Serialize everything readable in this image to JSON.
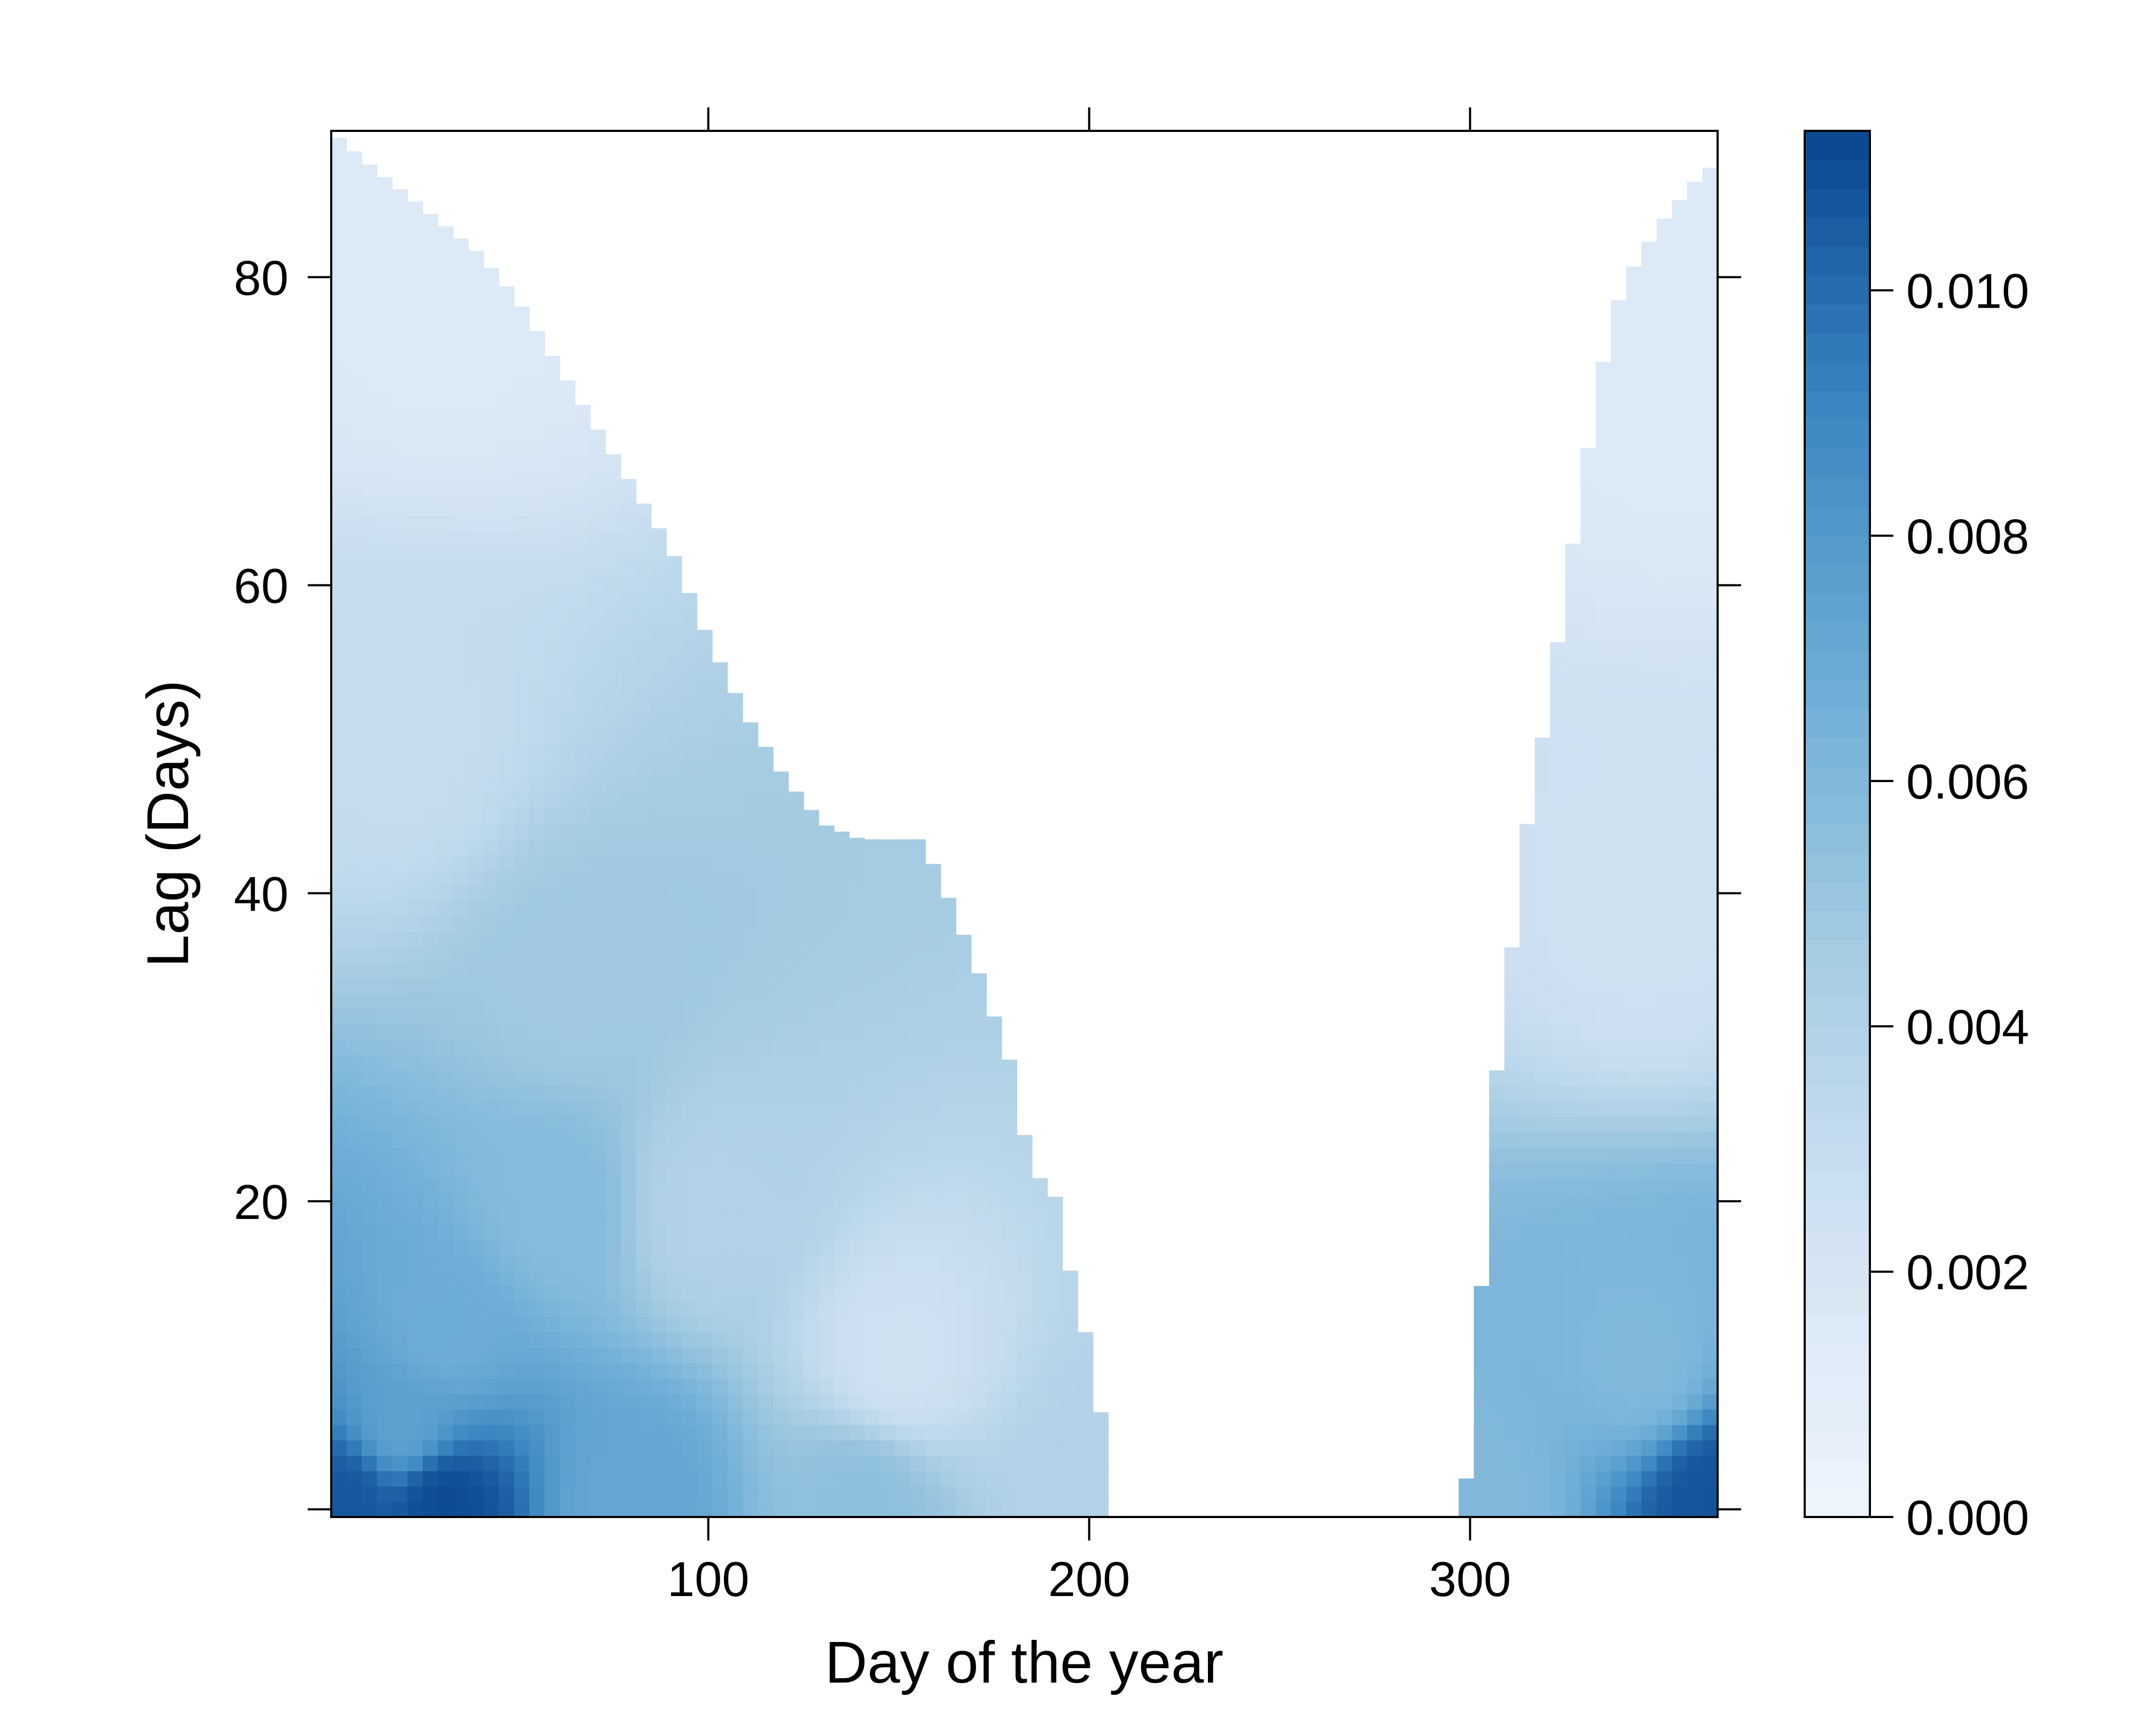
{
  "chart_data": {
    "type": "heatmap",
    "title": "",
    "xlabel": "Day of the year",
    "ylabel": "Lag (Days)",
    "xlim": [
      1,
      365
    ],
    "ylim": [
      0,
      90
    ],
    "x_ticks": [
      100,
      200,
      300
    ],
    "x_tick_labels": [
      "100",
      "200",
      "300"
    ],
    "y_ticks": [
      0,
      20,
      40,
      60,
      80
    ],
    "y_tick_labels": [
      "",
      "20",
      "40",
      "60",
      "80"
    ],
    "colorbar": {
      "min": 0.0,
      "max": 0.0113,
      "ticks": [
        0.0,
        0.002,
        0.004,
        0.006,
        0.008,
        0.01
      ],
      "tick_labels": [
        "0.000",
        "0.002",
        "0.004",
        "0.006",
        "0.008",
        "0.010"
      ],
      "low_color": "#eef5fd",
      "high_color": "#08468f"
    },
    "early_season_max_lag": [
      [
        1,
        90
      ],
      [
        10,
        88
      ],
      [
        20,
        86
      ],
      [
        30,
        84
      ],
      [
        40,
        82
      ],
      [
        50,
        79
      ],
      [
        60,
        75
      ],
      [
        70,
        71
      ],
      [
        80,
        67
      ],
      [
        90,
        63
      ],
      [
        100,
        57
      ],
      [
        110,
        52
      ],
      [
        120,
        48
      ],
      [
        130,
        45
      ],
      [
        140,
        44
      ],
      [
        155,
        44
      ],
      [
        160,
        42
      ],
      [
        170,
        36
      ],
      [
        180,
        29
      ],
      [
        185,
        22
      ],
      [
        190,
        22
      ],
      [
        195,
        16
      ],
      [
        200,
        11
      ],
      [
        205,
        4
      ],
      [
        207,
        0
      ]
    ],
    "late_season_max_lag": [
      [
        298,
        0
      ],
      [
        300,
        5
      ],
      [
        303,
        15
      ],
      [
        305,
        25
      ],
      [
        310,
        35
      ],
      [
        315,
        45
      ],
      [
        320,
        52
      ],
      [
        325,
        60
      ],
      [
        330,
        68
      ],
      [
        335,
        75
      ],
      [
        340,
        80
      ],
      [
        350,
        84
      ],
      [
        360,
        87
      ],
      [
        365,
        88
      ]
    ],
    "intensity_anchors": [
      {
        "day": 5,
        "lag": 1,
        "value": 0.0107
      },
      {
        "day": 30,
        "lag": 1,
        "value": 0.0111
      },
      {
        "day": 80,
        "lag": 1,
        "value": 0.0072
      },
      {
        "day": 140,
        "lag": 1,
        "value": 0.0055
      },
      {
        "day": 200,
        "lag": 1,
        "value": 0.004
      },
      {
        "day": 300,
        "lag": 1,
        "value": 0.006
      },
      {
        "day": 365,
        "lag": 1,
        "value": 0.0108
      },
      {
        "day": 20,
        "lag": 6,
        "value": 0.0075
      },
      {
        "day": 30,
        "lag": 12,
        "value": 0.0068
      },
      {
        "day": 60,
        "lag": 20,
        "value": 0.0058
      },
      {
        "day": 65,
        "lag": 35,
        "value": 0.0048
      },
      {
        "day": 100,
        "lag": 20,
        "value": 0.004
      },
      {
        "day": 150,
        "lag": 10,
        "value": 0.0025
      },
      {
        "day": 20,
        "lag": 50,
        "value": 0.003
      },
      {
        "day": 30,
        "lag": 80,
        "value": 0.0015
      },
      {
        "day": 345,
        "lag": 10,
        "value": 0.006
      },
      {
        "day": 345,
        "lag": 40,
        "value": 0.0025
      },
      {
        "day": 355,
        "lag": 75,
        "value": 0.0015
      }
    ]
  }
}
